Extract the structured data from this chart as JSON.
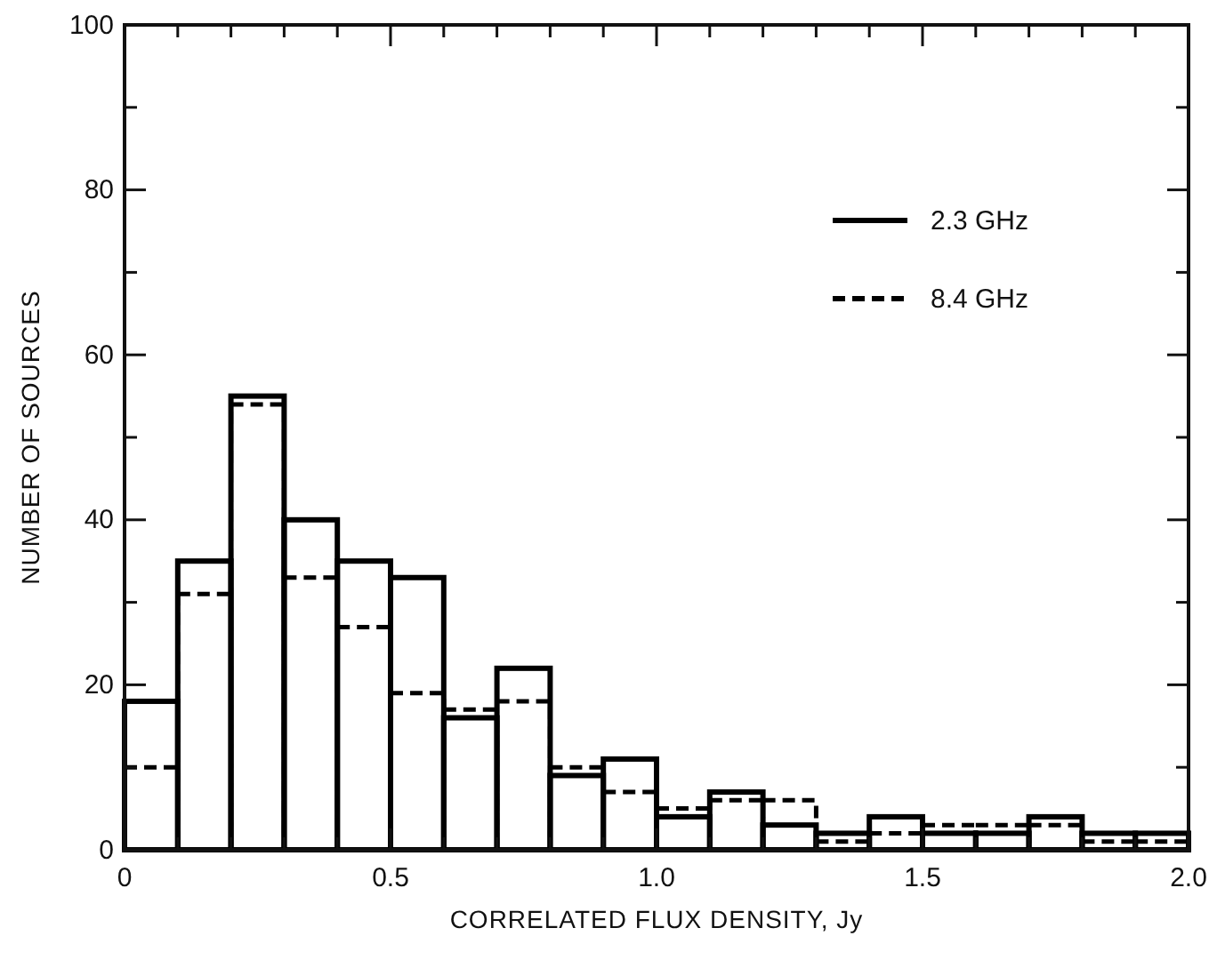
{
  "chart_data": {
    "type": "histogram",
    "xlabel": "CORRELATED FLUX DENSITY, Jy",
    "ylabel": "NUMBER OF SOURCES",
    "bins": [
      0,
      0.1,
      0.2,
      0.3,
      0.4,
      0.5,
      0.6,
      0.7,
      0.8,
      0.9,
      1.0,
      1.1,
      1.2,
      1.3,
      1.4,
      1.5,
      1.6,
      1.7,
      1.8,
      1.9,
      2.0
    ],
    "series": [
      {
        "name": "2.3 GHz",
        "color": "#000000",
        "line_style": "solid",
        "values": [
          18,
          35,
          55,
          40,
          35,
          33,
          16,
          22,
          9,
          11,
          4,
          7,
          3,
          2,
          4,
          2,
          2,
          4,
          2,
          2
        ]
      },
      {
        "name": "8.4 GHz",
        "color": "#000000",
        "line_style": "dashed",
        "values": [
          10,
          31,
          54,
          33,
          27,
          19,
          17,
          18,
          10,
          7,
          5,
          6,
          6,
          1,
          2,
          3,
          3,
          3,
          1,
          1
        ]
      }
    ],
    "xlim": [
      0,
      2.0
    ],
    "ylim": [
      0,
      100
    ],
    "xticks": [
      {
        "value": 0,
        "label": "0"
      },
      {
        "value": 0.1,
        "label": null
      },
      {
        "value": 0.2,
        "label": null
      },
      {
        "value": 0.3,
        "label": null
      },
      {
        "value": 0.4,
        "label": null
      },
      {
        "value": 0.5,
        "label": "0.5"
      },
      {
        "value": 0.6,
        "label": null
      },
      {
        "value": 0.7,
        "label": null
      },
      {
        "value": 0.8,
        "label": null
      },
      {
        "value": 0.9,
        "label": null
      },
      {
        "value": 1.0,
        "label": "1.0"
      },
      {
        "value": 1.1,
        "label": null
      },
      {
        "value": 1.2,
        "label": null
      },
      {
        "value": 1.3,
        "label": null
      },
      {
        "value": 1.4,
        "label": null
      },
      {
        "value": 1.5,
        "label": "1.5"
      },
      {
        "value": 1.6,
        "label": null
      },
      {
        "value": 1.7,
        "label": null
      },
      {
        "value": 1.8,
        "label": null
      },
      {
        "value": 1.9,
        "label": null
      },
      {
        "value": 2.0,
        "label": "2.0"
      }
    ],
    "yticks": [
      0,
      {
        "value": 10,
        "label": null
      },
      20,
      {
        "value": 30,
        "label": null
      },
      40,
      {
        "value": 50,
        "label": null
      },
      60,
      {
        "value": 70,
        "label": null
      },
      80,
      {
        "value": 90,
        "label": null
      },
      100
    ],
    "legend": "top right"
  }
}
